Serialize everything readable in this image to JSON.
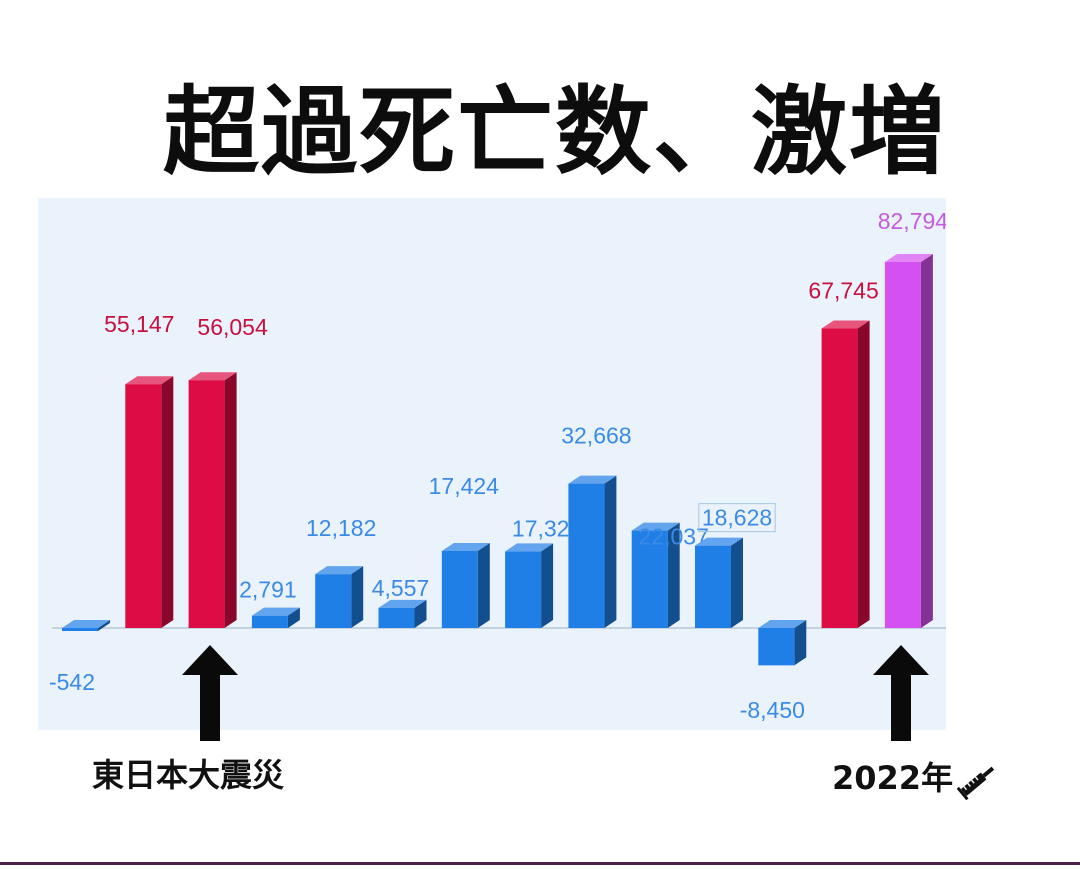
{
  "title": "超過死亡数、激増",
  "colors": {
    "blue": "#1f7fe6",
    "red": "#dd0c45",
    "purple": "#d550f0",
    "blue_label": "#3a8ae6",
    "red_label": "#c8103f",
    "purple_label": "#c45ce0",
    "panel": "#eaf3fc"
  },
  "chart_data": {
    "type": "bar",
    "title": "",
    "xlabel": "",
    "ylabel": "",
    "ylim": [
      -16000,
      92000
    ],
    "grid": false,
    "legend": "none",
    "values": [
      -542,
      55147,
      56054,
      2791,
      12182,
      4557,
      17424,
      17321,
      32668,
      22037,
      18628,
      -8450,
      67745,
      82794
    ],
    "labels": [
      "-542",
      "55,147",
      "56,054",
      "2,791",
      "12,182",
      "4,557",
      "17,424",
      "17,321",
      "32,668",
      "22,037",
      "18,628",
      "-8,450",
      "67,745",
      "82,794"
    ],
    "bar_colors": [
      "blue",
      "red",
      "red",
      "blue",
      "blue",
      "blue",
      "blue",
      "blue",
      "blue",
      "blue",
      "blue",
      "blue",
      "red",
      "purple"
    ]
  },
  "annotations": {
    "earthquake": "東日本大震災",
    "year": "2022年",
    "year_icon": "syringe-icon"
  }
}
